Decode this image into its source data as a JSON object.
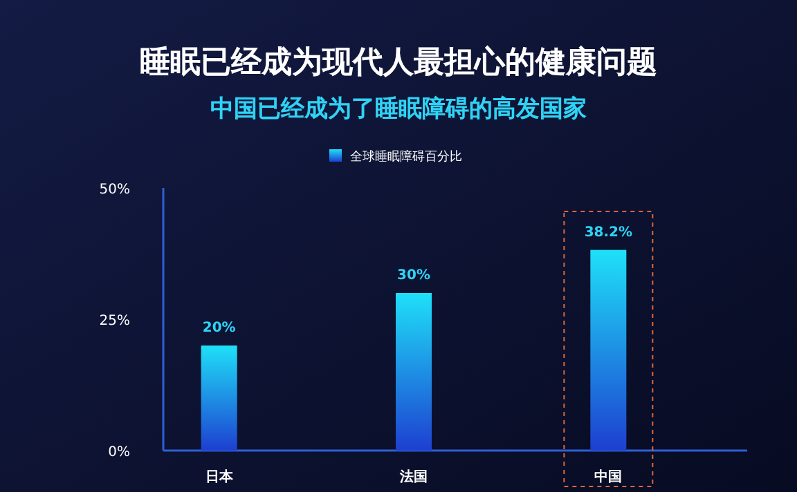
{
  "chart_data": {
    "type": "bar",
    "title": "睡眠已经成为现代人最担心的健康问题",
    "subtitle": "中国已经成为了睡眠障碍的高发国家",
    "categories": [
      "日本",
      "法国",
      "中国"
    ],
    "series": [
      {
        "name": "全球睡眠障碍百分比",
        "color": "#1fe0f8",
        "values": [
          20,
          30,
          38.2
        ]
      }
    ],
    "ylim": [
      0,
      50
    ],
    "yticks": [
      {
        "value": 0,
        "label": "0%"
      },
      {
        "value": 25,
        "label": "25%"
      },
      {
        "value": 50,
        "label": "50%"
      }
    ],
    "value_labels": [
      "20%",
      "30%",
      "38.2%"
    ],
    "legend": "top",
    "grid": false
  }
}
